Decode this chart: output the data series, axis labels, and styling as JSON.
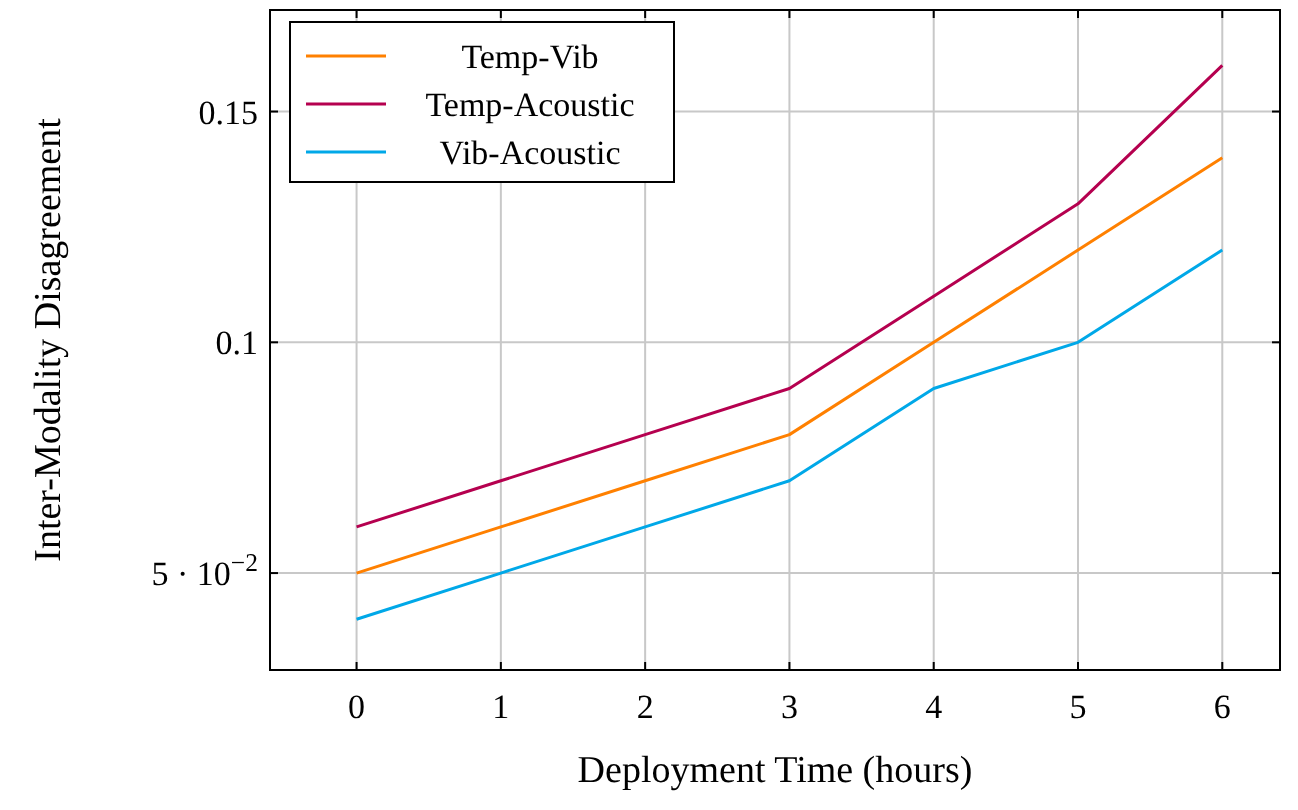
{
  "chart_data": {
    "type": "line",
    "xlabel": "Deployment Time (hours)",
    "ylabel": "Inter-Modality Disagreement",
    "x": [
      0,
      1,
      2,
      3,
      4,
      5,
      6
    ],
    "series": [
      {
        "name": "Temp-Vib",
        "color": "#ff8000",
        "values": [
          0.05,
          0.06,
          0.07,
          0.08,
          0.1,
          0.12,
          0.14
        ]
      },
      {
        "name": "Temp-Acoustic",
        "color": "#b5004f",
        "values": [
          0.06,
          0.07,
          0.08,
          0.09,
          0.11,
          0.13,
          0.16
        ]
      },
      {
        "name": "Vib-Acoustic",
        "color": "#00a8e8",
        "values": [
          0.04,
          0.05,
          0.06,
          0.07,
          0.09,
          0.1,
          0.12
        ]
      }
    ],
    "xlim": [
      -0.6,
      6.4
    ],
    "xticks": [
      0,
      1,
      2,
      3,
      4,
      5,
      6
    ],
    "ylim": [
      0.029,
      0.172
    ],
    "yticks": [
      {
        "value": 0.05,
        "label": "5 · 10$^{−2}$"
      },
      0.1,
      0.15
    ],
    "grid": true,
    "legend": "top left",
    "marker": "none",
    "line_style": "solid"
  }
}
